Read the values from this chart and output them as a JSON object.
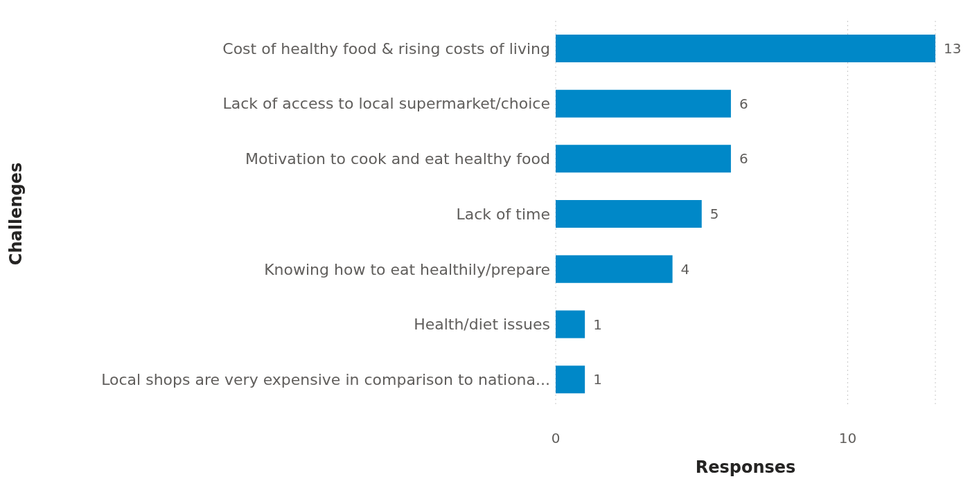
{
  "chart_data": {
    "type": "bar",
    "orientation": "horizontal",
    "xlabel": "Responses",
    "ylabel": "Challenges",
    "categories": [
      "Cost of healthy food & rising costs of living",
      "Lack of access to local supermarket/choice",
      "Motivation to cook and eat healthy food",
      "Lack of time",
      "Knowing how to eat healthily/prepare",
      "Health/diet issues",
      "Local shops are very expensive in comparison to nationa..."
    ],
    "values": [
      13,
      6,
      6,
      5,
      4,
      1,
      1
    ],
    "color": "#0088c8",
    "xlim": [
      0,
      13
    ],
    "xticks": [
      0,
      10
    ],
    "grid": "x",
    "data_labels": true
  }
}
